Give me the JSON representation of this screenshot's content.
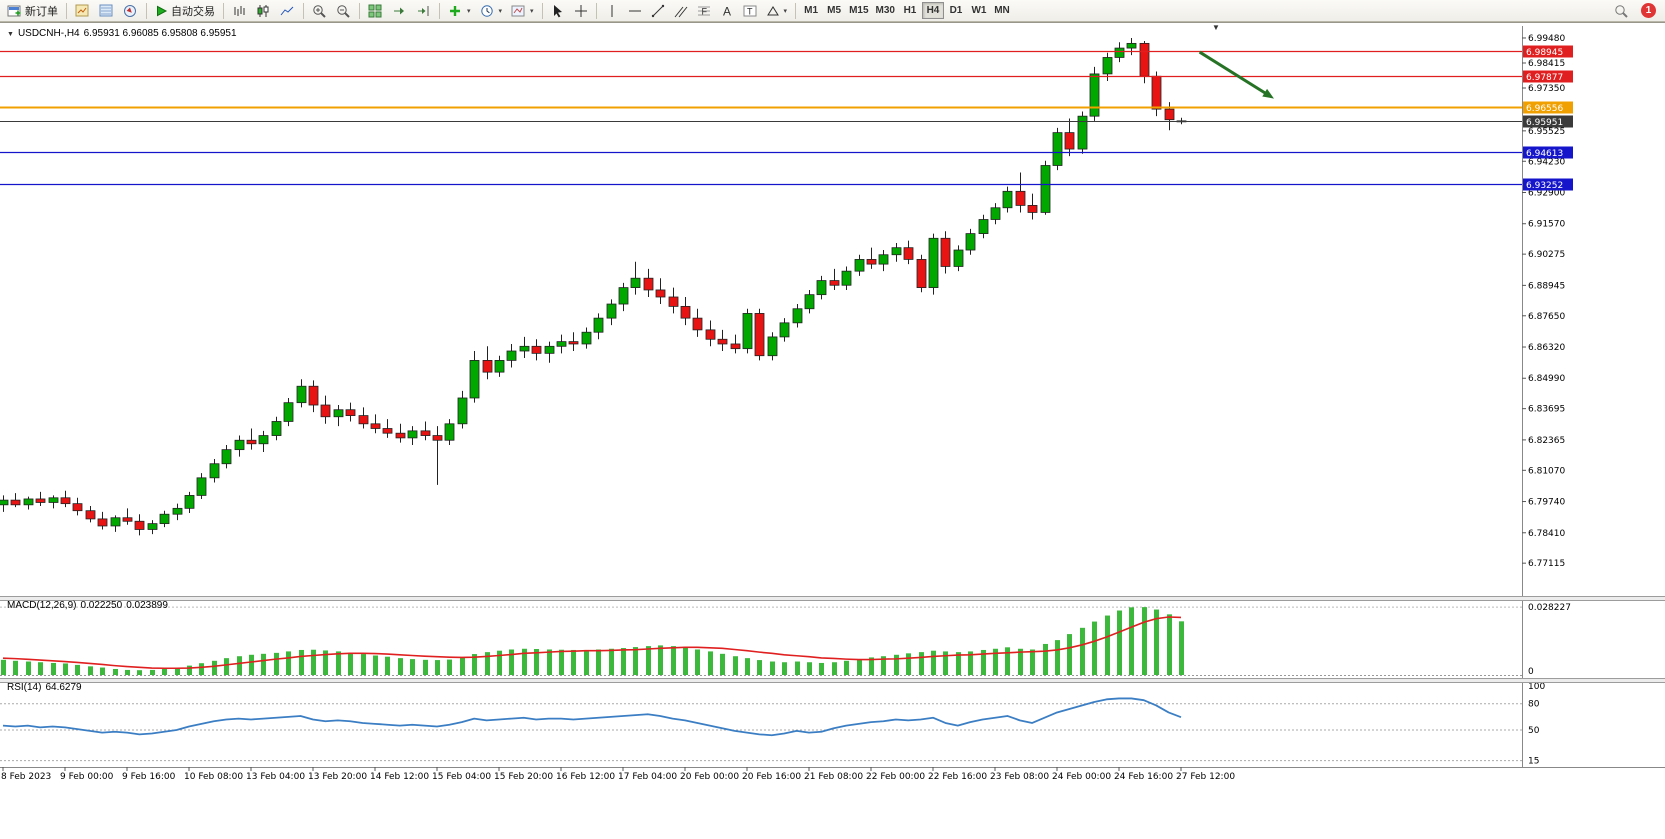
{
  "toolbar": {
    "new_order": "新订单",
    "autotrading": "自动交易",
    "timeframes": [
      "M1",
      "M5",
      "M15",
      "M30",
      "H1",
      "H4",
      "D1",
      "W1",
      "MN"
    ],
    "active_timeframe": "H4",
    "notification_count": "1"
  },
  "chart_data": {
    "type": "candlestick",
    "symbol_period": "USDCNH-,H4",
    "title_ohlc": "6.95931 6.96085 6.95808 6.95951",
    "last_ohlc": {
      "open": 6.95931,
      "high": 6.96085,
      "low": 6.95808,
      "close": 6.95951
    },
    "price_range": {
      "max": 6.9999,
      "min": 6.7576
    },
    "price_axis_ticks": [
      "6.99480",
      "6.98415",
      "6.97350",
      "6.95525",
      "6.94230",
      "6.92900",
      "6.91570",
      "6.90275",
      "6.88945",
      "6.87650",
      "6.86320",
      "6.84990",
      "6.83695",
      "6.82365",
      "6.81070",
      "6.79740",
      "6.78410",
      "6.77115"
    ],
    "x_labels": [
      "8 Feb 2023",
      "9 Feb 00:00",
      "9 Feb 16:00",
      "10 Feb 08:00",
      "13 Feb 04:00",
      "13 Feb 20:00",
      "14 Feb 12:00",
      "15 Feb 04:00",
      "15 Feb 20:00",
      "16 Feb 12:00",
      "17 Feb 04:00",
      "20 Feb 00:00",
      "20 Feb 16:00",
      "21 Feb 08:00",
      "22 Feb 00:00",
      "22 Feb 16:00",
      "23 Feb 08:00",
      "24 Feb 00:00",
      "24 Feb 16:00",
      "27 Feb 12:00"
    ],
    "x_label_step": 5,
    "candles": [
      [
        6.796,
        6.8,
        6.793,
        6.798
      ],
      [
        6.798,
        6.801,
        6.795,
        6.796
      ],
      [
        6.796,
        6.7995,
        6.794,
        6.7985
      ],
      [
        6.7985,
        6.8015,
        6.7955,
        6.797
      ],
      [
        6.797,
        6.8,
        6.7945,
        6.799
      ],
      [
        6.799,
        6.802,
        6.795,
        6.7965
      ],
      [
        6.7965,
        6.799,
        6.7915,
        6.7935
      ],
      [
        6.7935,
        6.7955,
        6.7885,
        6.79
      ],
      [
        6.79,
        6.793,
        6.7855,
        6.787
      ],
      [
        6.787,
        6.7915,
        6.7845,
        6.7905
      ],
      [
        6.7905,
        6.7945,
        6.7875,
        6.789
      ],
      [
        6.789,
        6.792,
        6.783,
        6.7855
      ],
      [
        6.7855,
        6.7895,
        6.7835,
        6.788
      ],
      [
        6.788,
        6.7935,
        6.7865,
        6.792
      ],
      [
        6.792,
        6.7965,
        6.7895,
        6.7945
      ],
      [
        6.7945,
        6.8015,
        6.7925,
        6.8
      ],
      [
        6.8,
        6.8095,
        6.7985,
        6.8075
      ],
      [
        6.8075,
        6.8155,
        6.8055,
        6.8135
      ],
      [
        6.8135,
        6.8215,
        6.8115,
        6.8195
      ],
      [
        6.8195,
        6.8255,
        6.8165,
        6.8235
      ],
      [
        6.8235,
        6.8285,
        6.8195,
        6.822
      ],
      [
        6.822,
        6.8275,
        6.8185,
        6.8255
      ],
      [
        6.8255,
        6.8335,
        6.8235,
        6.8315
      ],
      [
        6.8315,
        6.8415,
        6.8295,
        6.8395
      ],
      [
        6.8395,
        6.8495,
        6.8375,
        6.8465
      ],
      [
        6.8465,
        6.849,
        6.8355,
        6.8385
      ],
      [
        6.8385,
        6.8425,
        6.8305,
        6.8335
      ],
      [
        6.8335,
        6.8385,
        6.8295,
        6.8365
      ],
      [
        6.8365,
        6.8395,
        6.8315,
        6.834
      ],
      [
        6.834,
        6.8375,
        6.8285,
        6.8305
      ],
      [
        6.8305,
        6.8345,
        6.8265,
        6.8285
      ],
      [
        6.8285,
        6.8325,
        6.8245,
        6.8265
      ],
      [
        6.8265,
        6.8305,
        6.8225,
        6.8245
      ],
      [
        6.8245,
        6.8295,
        6.8215,
        6.8275
      ],
      [
        6.8275,
        6.8315,
        6.8235,
        6.8255
      ],
      [
        6.8255,
        6.8295,
        6.8045,
        6.8235
      ],
      [
        6.8235,
        6.8325,
        6.8215,
        6.8305
      ],
      [
        6.8305,
        6.8445,
        6.8285,
        6.8415
      ],
      [
        6.8415,
        6.8615,
        6.8395,
        6.8575
      ],
      [
        6.8575,
        6.8635,
        6.8495,
        6.8525
      ],
      [
        6.8525,
        6.8595,
        6.8505,
        6.8575
      ],
      [
        6.8575,
        6.8645,
        6.8545,
        6.8615
      ],
      [
        6.8615,
        6.8675,
        6.8585,
        6.8635
      ],
      [
        6.8635,
        6.8665,
        6.8575,
        6.8605
      ],
      [
        6.8605,
        6.8655,
        6.8565,
        6.8635
      ],
      [
        6.8635,
        6.8685,
        6.8605,
        6.8655
      ],
      [
        6.8655,
        6.8695,
        6.8615,
        6.8645
      ],
      [
        6.8645,
        6.8715,
        6.8625,
        6.8695
      ],
      [
        6.8695,
        6.8775,
        6.8665,
        6.8755
      ],
      [
        6.8755,
        6.8835,
        6.8725,
        6.8815
      ],
      [
        6.8815,
        6.8905,
        6.8785,
        6.8885
      ],
      [
        6.8885,
        6.8995,
        6.8855,
        6.8925
      ],
      [
        6.8925,
        6.8965,
        6.8845,
        6.8875
      ],
      [
        6.8875,
        6.8925,
        6.8815,
        6.8845
      ],
      [
        6.8845,
        6.8885,
        6.8775,
        6.8805
      ],
      [
        6.8805,
        6.8845,
        6.8725,
        6.8755
      ],
      [
        6.8755,
        6.8795,
        6.8675,
        6.8705
      ],
      [
        6.8705,
        6.8745,
        6.8635,
        6.8665
      ],
      [
        6.8665,
        6.8705,
        6.8615,
        6.8645
      ],
      [
        6.8645,
        6.8685,
        6.8605,
        6.8625
      ],
      [
        6.8625,
        6.8795,
        6.8605,
        6.8775
      ],
      [
        6.8775,
        6.8795,
        6.8575,
        6.8595
      ],
      [
        6.8595,
        6.8695,
        6.8575,
        6.8675
      ],
      [
        6.8675,
        6.8755,
        6.8655,
        6.8735
      ],
      [
        6.8735,
        6.8815,
        6.8715,
        6.8795
      ],
      [
        6.8795,
        6.8875,
        6.8775,
        6.8855
      ],
      [
        6.8855,
        6.8935,
        6.8835,
        6.8915
      ],
      [
        6.8915,
        6.8965,
        6.8875,
        6.8895
      ],
      [
        6.8895,
        6.8975,
        6.8875,
        6.8955
      ],
      [
        6.8955,
        6.9025,
        6.8935,
        6.9005
      ],
      [
        6.9005,
        6.9055,
        6.8965,
        6.8985
      ],
      [
        6.8985,
        6.9045,
        6.8955,
        6.9025
      ],
      [
        6.9025,
        6.9075,
        6.8995,
        6.9055
      ],
      [
        6.9055,
        6.9085,
        6.8985,
        6.9005
      ],
      [
        6.9005,
        6.9025,
        6.8865,
        6.8885
      ],
      [
        6.8885,
        6.9115,
        6.8855,
        6.9095
      ],
      [
        6.9095,
        6.9125,
        6.8945,
        6.8975
      ],
      [
        6.8975,
        6.9065,
        6.8955,
        6.9045
      ],
      [
        6.9045,
        6.9135,
        6.9025,
        6.9115
      ],
      [
        6.9115,
        6.9195,
        6.9095,
        6.9175
      ],
      [
        6.9175,
        6.9245,
        6.9155,
        6.9225
      ],
      [
        6.9225,
        6.9315,
        6.9205,
        6.9295
      ],
      [
        6.9295,
        6.9375,
        6.9205,
        6.9235
      ],
      [
        6.9235,
        6.9285,
        6.9175,
        6.9205
      ],
      [
        6.9205,
        6.9425,
        6.9195,
        6.9405
      ],
      [
        6.9405,
        6.9565,
        6.9385,
        6.9545
      ],
      [
        6.9545,
        6.9605,
        6.9445,
        6.9475
      ],
      [
        6.9475,
        6.9635,
        6.9455,
        6.9615
      ],
      [
        6.9615,
        6.9825,
        6.9595,
        6.9795
      ],
      [
        6.9795,
        6.9885,
        6.9765,
        6.9865
      ],
      [
        6.9865,
        6.993,
        6.9845,
        6.9905
      ],
      [
        6.9905,
        6.9948,
        6.9875,
        6.9925
      ],
      [
        6.9925,
        6.9935,
        6.9755,
        6.9785
      ],
      [
        6.9785,
        6.9805,
        6.9615,
        6.9645
      ],
      [
        6.9645,
        6.9675,
        6.9555,
        6.96
      ],
      [
        6.95931,
        6.96085,
        6.95808,
        6.95951
      ]
    ],
    "hlines": [
      {
        "price": 6.98945,
        "label": "6.98945",
        "color": "#e02020",
        "width": 1.2
      },
      {
        "price": 6.97877,
        "label": "6.97877",
        "color": "#e02020",
        "width": 1.2
      },
      {
        "price": 6.96556,
        "label": "6.96556",
        "color": "#f0a000",
        "width": 2
      },
      {
        "price": 6.95951,
        "label": "6.95951",
        "color": "#3a3a3a",
        "width": 1,
        "role": "bid"
      },
      {
        "price": 6.94613,
        "label": "6.94613",
        "color": "#1515cc",
        "width": 1.3
      },
      {
        "price": 6.93252,
        "label": "6.93252",
        "color": "#1515cc",
        "width": 1.3
      }
    ],
    "annotation_arrow": {
      "from_index": 96.5,
      "from_price": 6.9888,
      "to_index": 102.5,
      "to_price": 6.969,
      "color": "#267326"
    },
    "macd": {
      "label": "MACD(12,26,9)",
      "value_main": "0.022250",
      "value_signal": "0.023899",
      "axis_max_label": "0.028227",
      "axis_min_label": "0",
      "axis_max_value": 0.028227,
      "scale_max": 0.0295,
      "histogram": [
        0.0063,
        0.0059,
        0.0056,
        0.0053,
        0.005,
        0.0048,
        0.0042,
        0.0036,
        0.0031,
        0.0025,
        0.0021,
        0.002,
        0.0021,
        0.0025,
        0.0031,
        0.0039,
        0.0049,
        0.0059,
        0.007,
        0.0078,
        0.0084,
        0.0088,
        0.0092,
        0.0098,
        0.0104,
        0.0105,
        0.0102,
        0.0098,
        0.0092,
        0.0087,
        0.0081,
        0.0076,
        0.007,
        0.0066,
        0.0063,
        0.0062,
        0.0064,
        0.0073,
        0.0087,
        0.0095,
        0.0101,
        0.0106,
        0.0109,
        0.0108,
        0.0106,
        0.0105,
        0.0104,
        0.0104,
        0.0106,
        0.0109,
        0.0112,
        0.0116,
        0.012,
        0.0123,
        0.012,
        0.0115,
        0.0106,
        0.0098,
        0.0088,
        0.0078,
        0.007,
        0.0062,
        0.0056,
        0.0053,
        0.0056,
        0.0053,
        0.005,
        0.0053,
        0.0059,
        0.0066,
        0.0073,
        0.0078,
        0.0084,
        0.009,
        0.0095,
        0.0101,
        0.0098,
        0.0095,
        0.0098,
        0.0104,
        0.0109,
        0.0115,
        0.0109,
        0.0106,
        0.0129,
        0.0145,
        0.017,
        0.0196,
        0.0222,
        0.0247,
        0.0268,
        0.0281,
        0.0282,
        0.0272,
        0.0252,
        0.0223
      ],
      "signal": [
        0.007,
        0.0068,
        0.0065,
        0.0062,
        0.0059,
        0.0056,
        0.0052,
        0.0048,
        0.0044,
        0.0039,
        0.0035,
        0.0032,
        0.0029,
        0.0028,
        0.0028,
        0.0029,
        0.0032,
        0.0036,
        0.0042,
        0.0048,
        0.0054,
        0.006,
        0.0066,
        0.0071,
        0.0077,
        0.0081,
        0.0085,
        0.0088,
        0.009,
        0.009,
        0.0089,
        0.0087,
        0.0084,
        0.0081,
        0.0078,
        0.0076,
        0.0074,
        0.0073,
        0.0074,
        0.0077,
        0.0081,
        0.0085,
        0.009,
        0.0092,
        0.0095,
        0.0098,
        0.0099,
        0.0101,
        0.0101,
        0.0102,
        0.0104,
        0.0105,
        0.0108,
        0.0111,
        0.0113,
        0.0115,
        0.0115,
        0.0113,
        0.0111,
        0.0106,
        0.0101,
        0.0095,
        0.009,
        0.0084,
        0.008,
        0.0076,
        0.0071,
        0.0069,
        0.0066,
        0.0064,
        0.0064,
        0.0066,
        0.0067,
        0.007,
        0.0073,
        0.0077,
        0.008,
        0.0083,
        0.0084,
        0.0087,
        0.009,
        0.0092,
        0.0095,
        0.0097,
        0.0099,
        0.0104,
        0.0113,
        0.0125,
        0.014,
        0.0158,
        0.0178,
        0.0199,
        0.0219,
        0.0234,
        0.0241,
        0.0239
      ]
    },
    "rsi": {
      "label": "RSI(14)",
      "value_text": "64.6279",
      "levels": [
        100,
        80,
        50,
        15
      ],
      "scale_min": 10,
      "scale_max": 102.5,
      "values": [
        55,
        54,
        55,
        53,
        54,
        53,
        51,
        49,
        47,
        48,
        47,
        45,
        46,
        48,
        50,
        54,
        57,
        60,
        62,
        63,
        62,
        63,
        64,
        65,
        66,
        62,
        60,
        61,
        60,
        58,
        57,
        56,
        55,
        56,
        55,
        54,
        56,
        59,
        63,
        61,
        62,
        63,
        64,
        62,
        63,
        63,
        62,
        63,
        64,
        65,
        66,
        67,
        68,
        66,
        63,
        61,
        58,
        55,
        52,
        49,
        47,
        45,
        44,
        46,
        49,
        47,
        48,
        52,
        55,
        57,
        59,
        60,
        62,
        61,
        62,
        64,
        58,
        55,
        59,
        62,
        64,
        66,
        61,
        58,
        64,
        70,
        74,
        78,
        82,
        85,
        86,
        86,
        84,
        78,
        70,
        64.63
      ]
    },
    "colors": {
      "bull": "#00a800",
      "bear": "#e81414",
      "wick": "#222222",
      "macd_hist": "#3cb83c",
      "macd_signal": "#e02020",
      "rsi_line": "#3b7ec4",
      "axis_line": "#888888"
    }
  }
}
